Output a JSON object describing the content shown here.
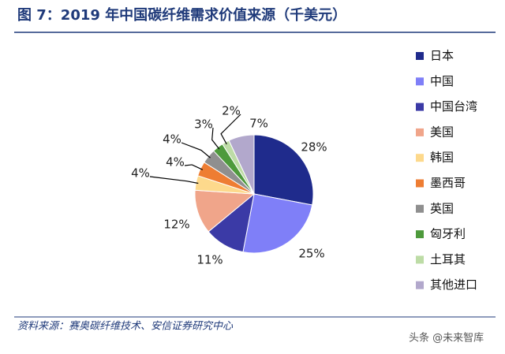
{
  "chart_data": {
    "type": "pie",
    "title": "图 7：2019 年中国碳纤维需求价值来源（千美元）",
    "categories": [
      "日本",
      "中国",
      "中国台湾",
      "美国",
      "韩国",
      "墨西哥",
      "英国",
      "匈牙利",
      "土耳其",
      "其他进口"
    ],
    "values": [
      28,
      25,
      11,
      12,
      4,
      4,
      4,
      3,
      2,
      7
    ],
    "value_labels": [
      "28%",
      "25%",
      "11%",
      "12%",
      "4%",
      "4%",
      "4%",
      "3%",
      "2%",
      "7%"
    ],
    "colors": [
      "#1f2b8c",
      "#7f7ff8",
      "#3b3aa6",
      "#f0a58a",
      "#fdd98c",
      "#ee7d33",
      "#8f8f8f",
      "#4e9a3c",
      "#bddca6",
      "#b2a8cc"
    ],
    "legend": "right",
    "source": "资料来源：赛奥碳纤维技术、安信证券研究中心"
  },
  "watermark": "头条 @未来智库"
}
